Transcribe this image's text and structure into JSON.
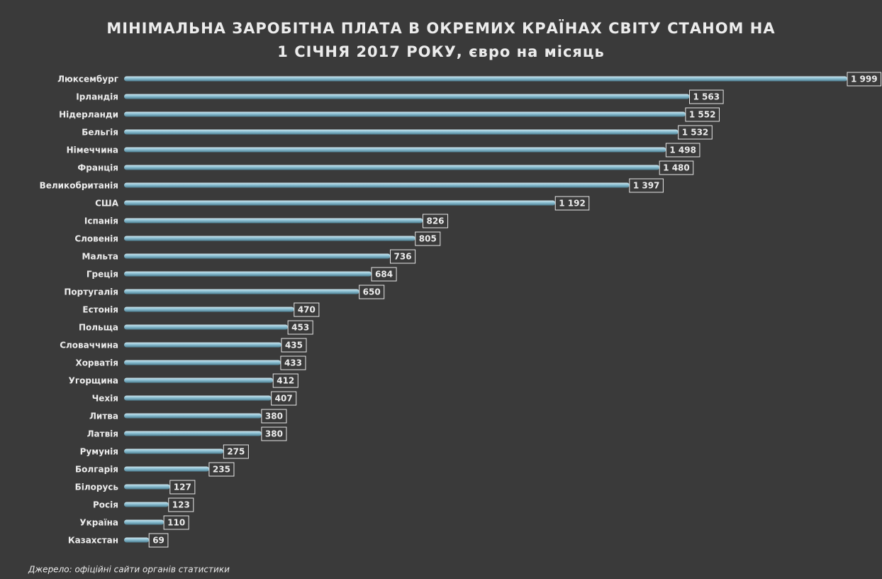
{
  "chart_data": {
    "type": "bar",
    "orientation": "horizontal",
    "title": [
      "МІНІМАЛЬНА ЗАРОБІТНА ПЛАТА В ОКРЕМИХ КРАЇНАХ СВІТУ СТАНОМ НА",
      "1 СІЧНЯ 2017 РОКУ, євро на місяць"
    ],
    "categories": [
      "Люксембург",
      "Ірландія",
      "Нідерланди",
      "Бельгія",
      "Німеччина",
      "Франція",
      "Великобританія",
      "США",
      "Іспанія",
      "Словенія",
      "Мальта",
      "Греція",
      "Португалія",
      "Естонія",
      "Польща",
      "Словаччина",
      "Хорватія",
      "Угорщина",
      "Чехія",
      "Литва",
      "Латвія",
      "Румунія",
      "Болгарія",
      "Білорусь",
      "Росія",
      "Україна",
      "Казахстан"
    ],
    "values": [
      1999,
      1563,
      1552,
      1532,
      1498,
      1480,
      1397,
      1192,
      826,
      805,
      736,
      684,
      650,
      470,
      453,
      435,
      433,
      412,
      407,
      380,
      380,
      275,
      235,
      127,
      123,
      110,
      69
    ],
    "value_labels": [
      "1 999",
      "1 563",
      "1 552",
      "1 532",
      "1 498",
      "1 480",
      "1 397",
      "1 192",
      "826",
      "805",
      "736",
      "684",
      "650",
      "470",
      "453",
      "435",
      "433",
      "412",
      "407",
      "380",
      "380",
      "275",
      "235",
      "127",
      "123",
      "110",
      "69"
    ],
    "color": "#8cc0d3",
    "source": "Джерело: офіційні сайти органів статистики"
  }
}
